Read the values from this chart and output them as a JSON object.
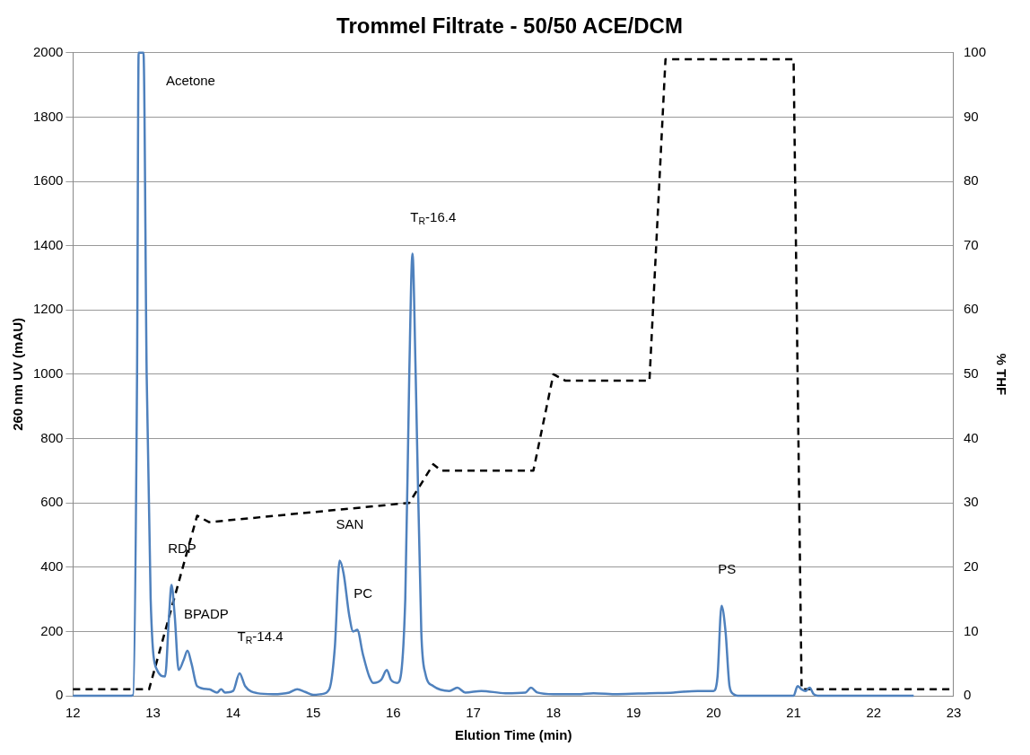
{
  "chart_data": {
    "type": "line",
    "title": "Trommel Filtrate - 50/50 ACE/DCM",
    "xlabel": "Elution Time (min)",
    "ylabel": "260 nm UV (mAU)",
    "y2label": "% THF",
    "xlim": [
      12,
      23
    ],
    "xticks": [
      12,
      13,
      14,
      15,
      16,
      17,
      18,
      19,
      20,
      21,
      22,
      23
    ],
    "ylim": [
      0,
      2000
    ],
    "yticks": [
      0,
      200,
      400,
      600,
      800,
      1000,
      1200,
      1400,
      1600,
      1800,
      2000
    ],
    "y2lim": [
      0,
      100
    ],
    "y2ticks": [
      0,
      10,
      20,
      30,
      40,
      50,
      60,
      70,
      80,
      90,
      100
    ],
    "grid": "y",
    "legend": false,
    "marker": "none",
    "series": [
      {
        "color": "#4f81bd",
        "line_style": "solid",
        "x": [
          12.0,
          12.7,
          12.75,
          12.8,
          12.82,
          12.88,
          12.92,
          12.97,
          13.05,
          13.15,
          13.2,
          13.23,
          13.27,
          13.32,
          13.38,
          13.43,
          13.48,
          13.55,
          13.7,
          13.8,
          13.85,
          13.9,
          14.0,
          14.08,
          14.15,
          14.3,
          14.5,
          14.7,
          14.8,
          14.9,
          15.0,
          15.1,
          15.2,
          15.27,
          15.33,
          15.38,
          15.45,
          15.5,
          15.55,
          15.62,
          15.7,
          15.75,
          15.85,
          15.92,
          15.97,
          16.05,
          16.15,
          16.2,
          16.24,
          16.28,
          16.35,
          16.4,
          16.5,
          16.7,
          16.8,
          16.9,
          17.1,
          17.4,
          17.65,
          17.72,
          17.8,
          18.0,
          18.3,
          18.5,
          18.8,
          19.2,
          19.5,
          19.8,
          20.0,
          20.05,
          20.1,
          20.15,
          20.2,
          20.25,
          20.3,
          21.0,
          21.05,
          21.1,
          21.15,
          21.2,
          21.25,
          21.3,
          22.5
        ],
        "values": [
          0,
          0,
          2,
          1000,
          2000,
          2000,
          1000,
          300,
          80,
          60,
          250,
          345,
          250,
          80,
          110,
          140,
          100,
          30,
          20,
          10,
          20,
          10,
          15,
          70,
          30,
          8,
          5,
          10,
          20,
          12,
          3,
          5,
          20,
          150,
          420,
          380,
          250,
          200,
          205,
          130,
          60,
          40,
          50,
          80,
          50,
          40,
          300,
          1000,
          1375,
          1000,
          200,
          70,
          30,
          15,
          25,
          10,
          15,
          8,
          10,
          25,
          10,
          5,
          5,
          8,
          5,
          8,
          10,
          15,
          15,
          60,
          280,
          200,
          30,
          5,
          0,
          0,
          30,
          20,
          15,
          25,
          5,
          0,
          0
        ]
      },
      {
        "color": "#000000",
        "line_style": "dashed",
        "axis": "y2",
        "x": [
          12.0,
          12.95,
          13.55,
          13.7,
          16.2,
          16.5,
          16.6,
          17.75,
          18.0,
          18.15,
          19.2,
          19.4,
          21.0,
          21.1,
          23.0
        ],
        "values": [
          1,
          1,
          28,
          27,
          30,
          36,
          35,
          35,
          50,
          49,
          49,
          99,
          99,
          1,
          1
        ]
      }
    ],
    "annotations": [
      {
        "text": "Acetone",
        "x": 12.88,
        "y": 2000
      },
      {
        "text": "RDP",
        "x": 13.23,
        "y": 345
      },
      {
        "text": "BPADP",
        "x": 13.43,
        "y": 140
      },
      {
        "text": "T$_{R}$-14.4",
        "x": 14.08,
        "y": 70
      },
      {
        "text": "SAN",
        "x": 15.33,
        "y": 420
      },
      {
        "text": "PC",
        "x": 15.55,
        "y": 205
      },
      {
        "text": "T$_{R}$-16.4",
        "x": 16.24,
        "y": 1375
      },
      {
        "text": "PS",
        "x": 20.1,
        "y": 280
      }
    ]
  }
}
